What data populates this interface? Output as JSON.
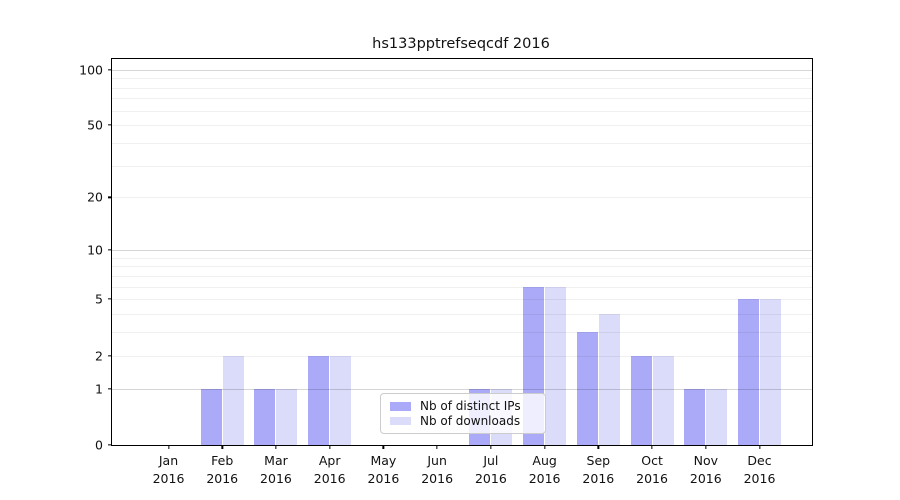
{
  "chart_data": {
    "type": "bar",
    "title": "hs133pptrefseqcdf 2016",
    "year_label": "2016",
    "categories": [
      "Jan",
      "Feb",
      "Mar",
      "Apr",
      "May",
      "Jun",
      "Jul",
      "Aug",
      "Sep",
      "Oct",
      "Nov",
      "Dec"
    ],
    "series": [
      {
        "name": "Nb of distinct IPs",
        "color": "#aaaaf9",
        "values": [
          0,
          1,
          1,
          2,
          0,
          0,
          1,
          6,
          3,
          2,
          1,
          5
        ]
      },
      {
        "name": "Nb of downloads",
        "color": "#dbdbfa",
        "values": [
          0,
          2,
          1,
          2,
          0,
          0,
          1,
          6,
          4,
          2,
          1,
          5
        ]
      }
    ],
    "yscale": "log10(value+1)",
    "ylim": [
      0,
      114
    ],
    "ytick_values": [
      0,
      1,
      2,
      5,
      10,
      20,
      50,
      100
    ],
    "ytick_labels": [
      "0",
      "1",
      "2",
      "5",
      "10",
      "20",
      "50",
      "100"
    ],
    "grid_major_values": [
      1,
      10,
      100
    ],
    "grid_minor_values": [
      2,
      3,
      4,
      5,
      6,
      7,
      8,
      9,
      20,
      30,
      40,
      50,
      60,
      70,
      80,
      90
    ],
    "grid": true,
    "legend_position": "lower center",
    "xlabel": "",
    "ylabel": ""
  },
  "colors": {
    "axis": "#000000",
    "text": "#111111",
    "legend_border": "#cccccc",
    "legend_background": "rgba(255,255,255,0.8)"
  }
}
